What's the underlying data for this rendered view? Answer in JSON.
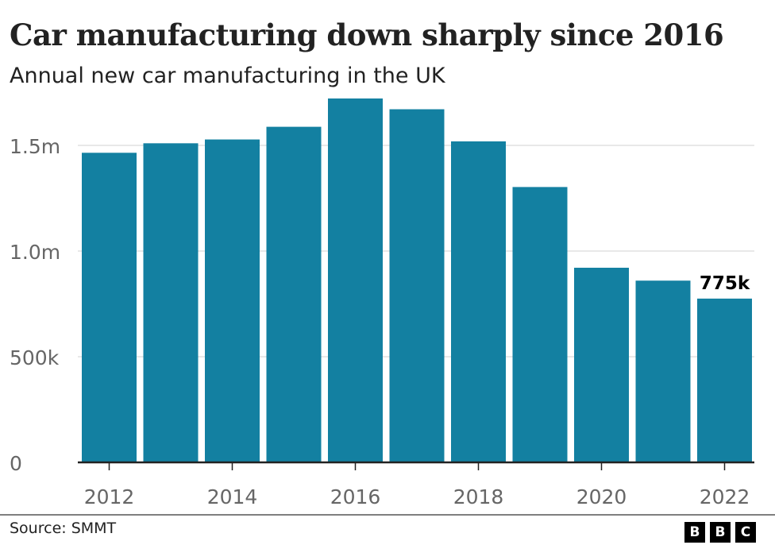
{
  "chart_data": {
    "type": "bar",
    "title": "Car manufacturing down sharply since 2016",
    "subtitle": "Annual new car manufacturing in the UK",
    "categories": [
      "2012",
      "2013",
      "2014",
      "2015",
      "2016",
      "2017",
      "2018",
      "2019",
      "2020",
      "2021",
      "2022"
    ],
    "values": [
      1465000,
      1510000,
      1528000,
      1588000,
      1722000,
      1671000,
      1519000,
      1303000,
      921000,
      860000,
      775000
    ],
    "ylim": [
      0,
      1750000
    ],
    "yticks": [
      {
        "value": 0,
        "label": "0"
      },
      {
        "value": 500000,
        "label": "500k"
      },
      {
        "value": 1000000,
        "label": "1.0m"
      },
      {
        "value": 1500000,
        "label": "1.5m"
      }
    ],
    "xtick_labels": [
      "2012",
      "2014",
      "2016",
      "2018",
      "2020",
      "2022"
    ],
    "annotations": [
      {
        "category": "2022",
        "label": "775k"
      }
    ],
    "grid": true,
    "bar_color": "#1380A1"
  },
  "source": "Source: SMMT",
  "logo": "BBC"
}
